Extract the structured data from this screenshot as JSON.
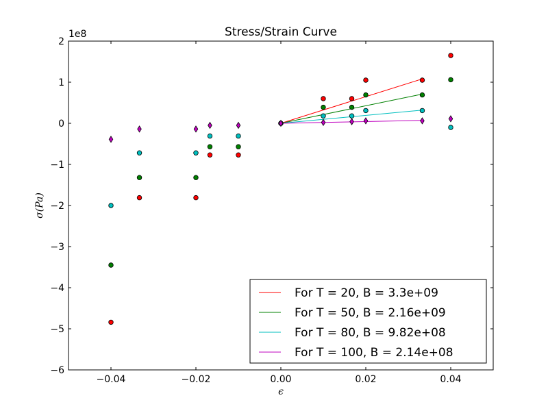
{
  "chart_data": {
    "type": "scatter",
    "title": "Stress/Strain Curve",
    "xlabel": "ϵ",
    "ylabel": "σ(Pa)",
    "y_offset_label": "1e8",
    "xlim": [
      -0.05,
      0.05
    ],
    "ylim": [
      -6,
      2
    ],
    "x_ticks": [
      -0.04,
      -0.02,
      0.0,
      0.02,
      0.04
    ],
    "x_tick_labels": [
      "−0.04",
      "−0.02",
      "0.00",
      "0.02",
      "0.04"
    ],
    "y_ticks": [
      -6,
      -5,
      -4,
      -3,
      -2,
      -1,
      0,
      1,
      2
    ],
    "y_tick_labels": [
      "−6",
      "−5",
      "−4",
      "−3",
      "−2",
      "−1",
      "0",
      "1",
      "2"
    ],
    "grid": false,
    "legend_position": "lower-right",
    "series": [
      {
        "name": "For T = 20, B = 3.3e+09",
        "color": "#ff0000",
        "marker": "circle",
        "x": [
          -0.04,
          -0.0333,
          -0.02,
          -0.0167,
          -0.01,
          0.0,
          0.01,
          0.0167,
          0.02,
          0.0333,
          0.04
        ],
        "y": [
          -4.84,
          -1.81,
          -1.81,
          -0.77,
          -0.77,
          0.0,
          0.6,
          0.6,
          1.05,
          1.05,
          1.65
        ],
        "fit_line": {
          "x": [
            0.0,
            0.0333
          ],
          "y": [
            0.0,
            1.08
          ]
        }
      },
      {
        "name": "For T = 50, B = 2.16e+09",
        "color": "#008000",
        "marker": "circle",
        "x": [
          -0.04,
          -0.0333,
          -0.02,
          -0.0167,
          -0.01,
          0.0,
          0.01,
          0.0167,
          0.02,
          0.0333,
          0.04
        ],
        "y": [
          -3.45,
          -1.32,
          -1.32,
          -0.57,
          -0.57,
          0.0,
          0.39,
          0.39,
          0.69,
          0.69,
          1.06
        ],
        "fit_line": {
          "x": [
            0.0,
            0.0333
          ],
          "y": [
            0.0,
            0.71
          ]
        }
      },
      {
        "name": "For T = 80, B = 9.82e+08",
        "color": "#00bfbf",
        "marker": "circle",
        "x": [
          -0.04,
          -0.0333,
          -0.02,
          -0.0167,
          -0.01,
          0.0,
          0.01,
          0.0167,
          0.02,
          0.0333,
          0.04
        ],
        "y": [
          -2.0,
          -0.72,
          -0.72,
          -0.31,
          -0.31,
          0.0,
          0.18,
          0.18,
          0.31,
          0.31,
          -0.1
        ],
        "fit_line": {
          "x": [
            0.0,
            0.0333
          ],
          "y": [
            0.0,
            0.32
          ]
        }
      },
      {
        "name": "For T = 100, B = 2.14e+08",
        "color": "#bf00bf",
        "marker": "diamond",
        "x": [
          -0.04,
          -0.0333,
          -0.02,
          -0.0167,
          -0.01,
          0.0,
          0.01,
          0.0167,
          0.02,
          0.0333,
          0.04
        ],
        "y": [
          -0.39,
          -0.14,
          -0.14,
          -0.05,
          -0.05,
          0.0,
          0.02,
          0.04,
          0.06,
          0.06,
          0.11
        ],
        "fit_line": {
          "x": [
            0.0,
            0.0333
          ],
          "y": [
            0.0,
            0.07
          ]
        }
      }
    ]
  }
}
